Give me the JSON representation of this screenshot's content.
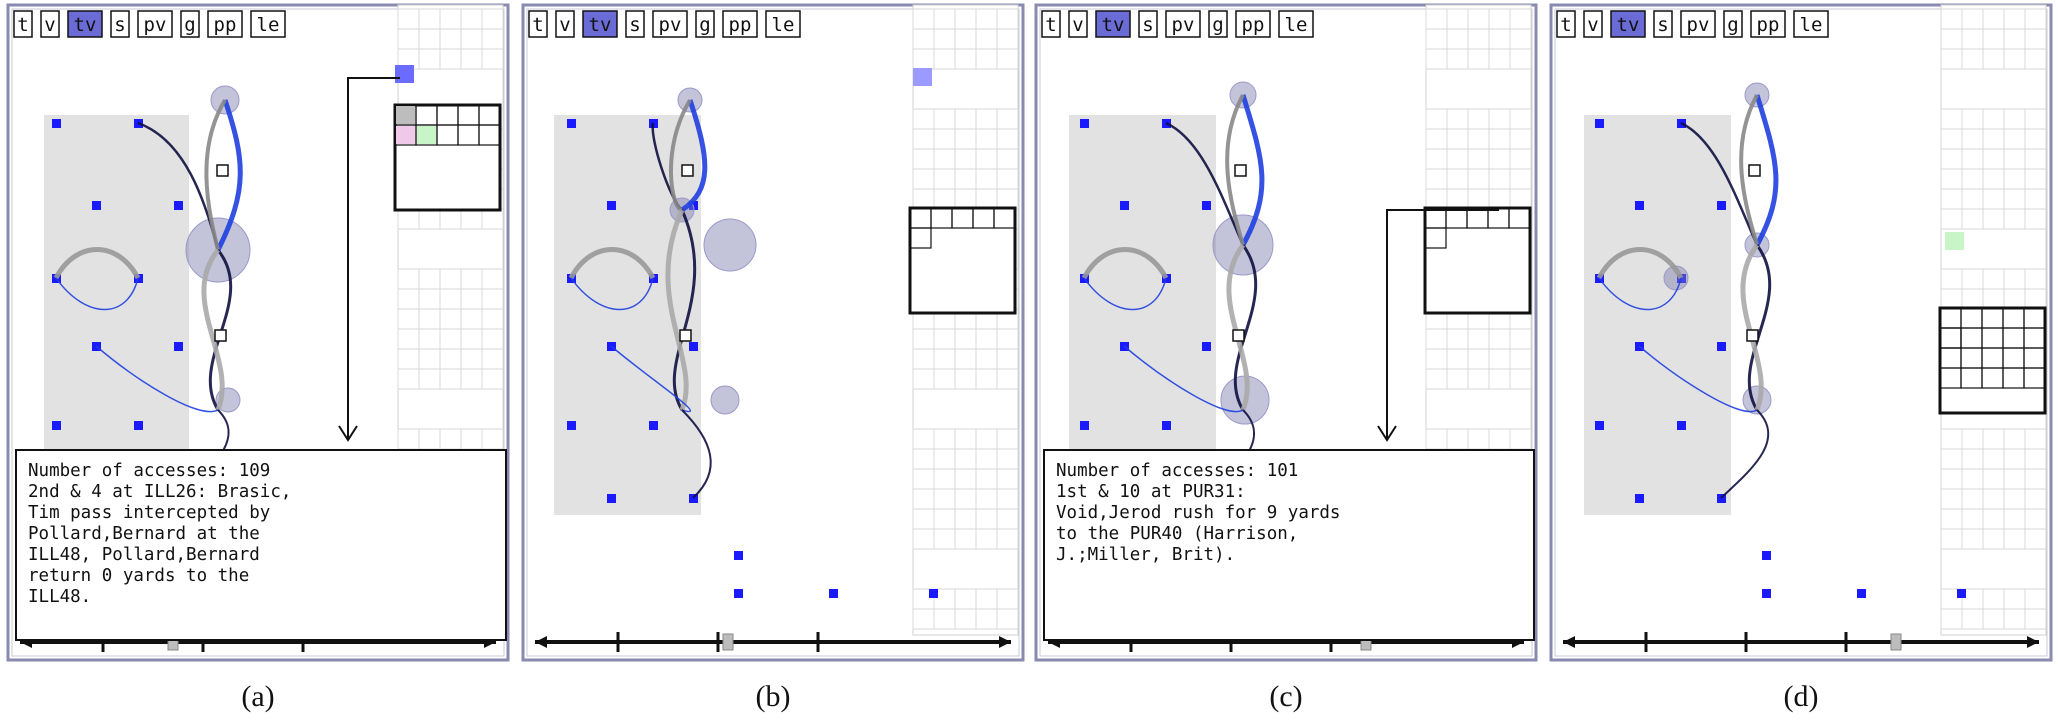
{
  "figure": {
    "toolbar_buttons": [
      {
        "label": "t",
        "name": "t"
      },
      {
        "label": "v",
        "name": "v"
      },
      {
        "label": "tv",
        "name": "tv",
        "selected": true
      },
      {
        "label": "s",
        "name": "s"
      },
      {
        "label": "pv",
        "name": "pv"
      },
      {
        "label": "g",
        "name": "g"
      },
      {
        "label": "pp",
        "name": "pp"
      },
      {
        "label": "le",
        "name": "le"
      }
    ],
    "colors": {
      "node": "#1a1aff",
      "selected_button": "#6b6bd6",
      "frame": "#8a8ab0",
      "field": "#e2e2e2",
      "link_blue": "#1f3fe0",
      "link_dark": "#101040",
      "hub": "#7a7aaa"
    },
    "panels": [
      {
        "caption": "(a)",
        "tooltip": {
          "lines": [
            "Number of accesses: 109",
            "2nd & 4 at ILL26: Brasic,",
            "Tim pass intercepted by",
            "Pollard,Bernard at the",
            "ILL48, Pollard,Bernard",
            "return 0 yards to the",
            "ILL48."
          ]
        }
      },
      {
        "caption": "(b)",
        "tooltip": null
      },
      {
        "caption": "(c)",
        "tooltip": {
          "lines": [
            "Number of accesses: 101",
            "1st & 10 at PUR31:",
            "Void,Jerod rush for 9 yards",
            "to the PUR40 (Harrison,",
            "J.;Miller, Brit)."
          ]
        }
      },
      {
        "caption": "(d)",
        "tooltip": null
      }
    ]
  }
}
